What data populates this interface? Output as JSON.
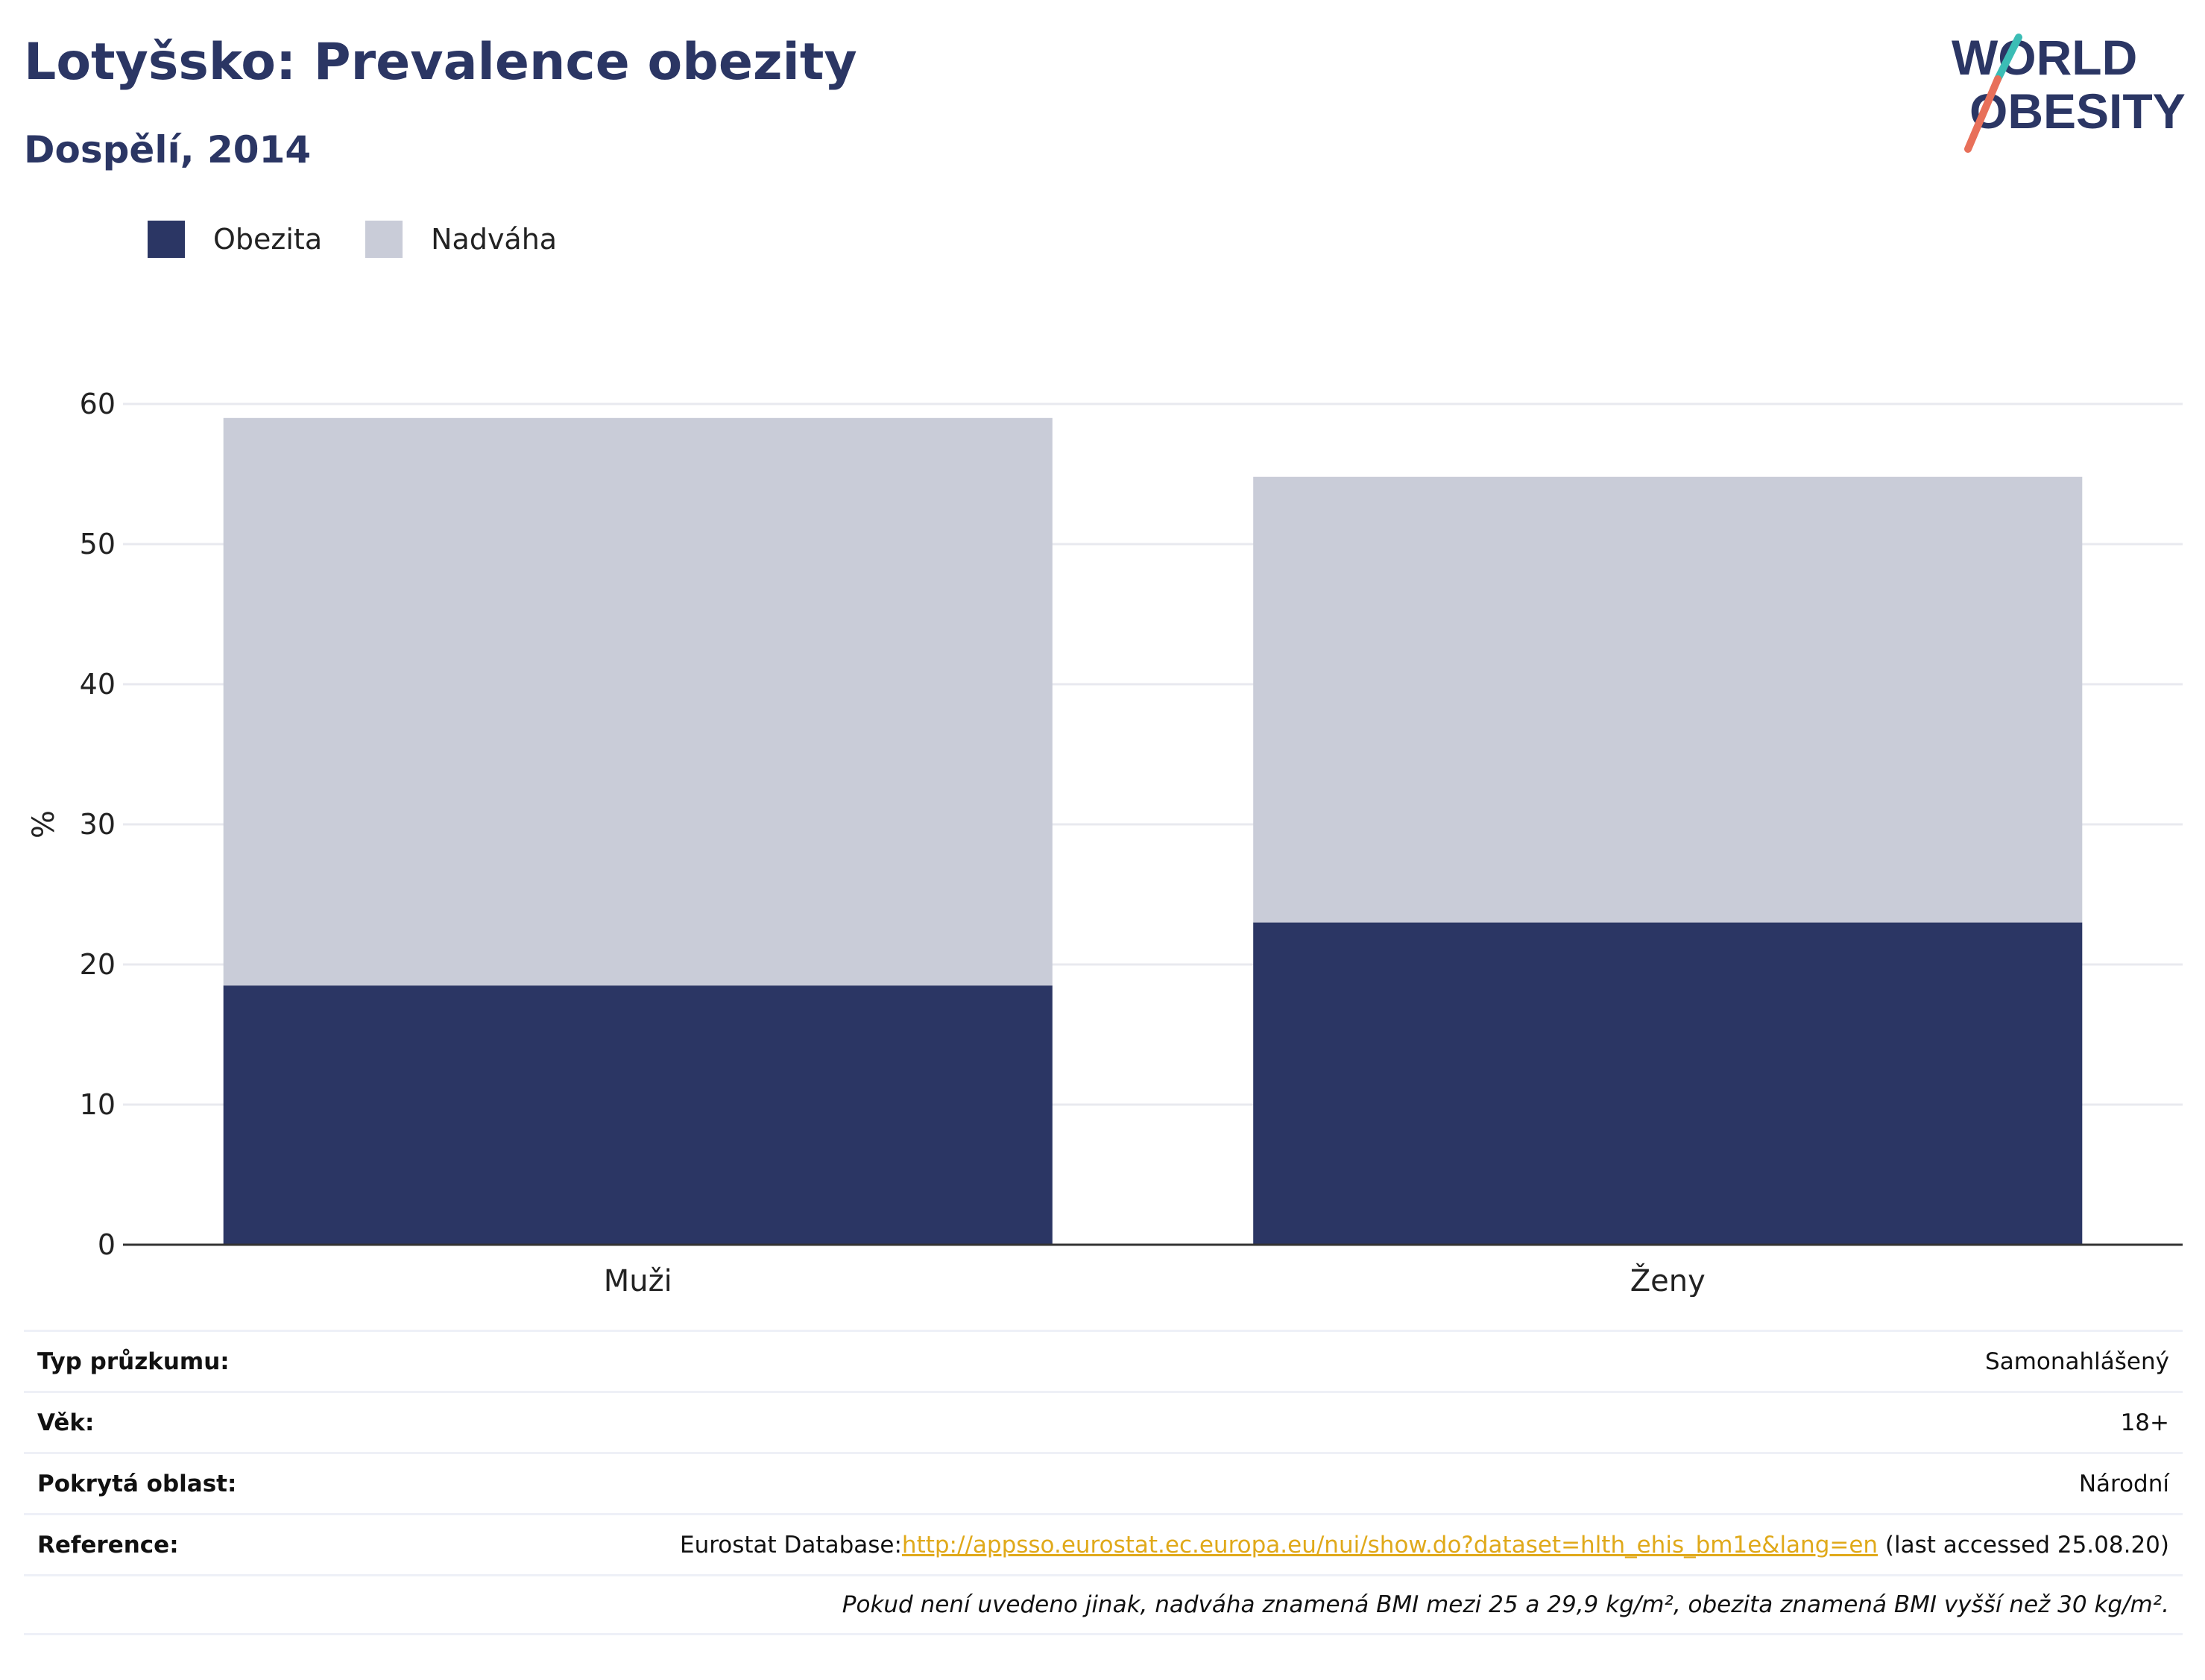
{
  "header": {
    "title": "Lotyšsko: Prevalence obezity",
    "subtitle": "Dospělí, 2014"
  },
  "logo": {
    "line1": "WORLD",
    "line2": "OBESITY"
  },
  "chart_data": {
    "type": "bar",
    "stacked": true,
    "categories": [
      "Muži",
      "Ženy"
    ],
    "series": [
      {
        "name": "Obezita",
        "values": [
          18.5,
          23.0
        ],
        "color": "#2b3664"
      },
      {
        "name": "Nadváha",
        "values": [
          40.5,
          31.8
        ],
        "color": "#c9ccd8"
      }
    ],
    "ylabel": "%",
    "ylim": [
      0,
      60
    ],
    "yticks": [
      0,
      10,
      20,
      30,
      40,
      50,
      60
    ],
    "grid": true,
    "legend_position": "top-left"
  },
  "info": {
    "survey_label": "Typ průzkumu:",
    "survey_value": "Samonahlášený",
    "age_label": "Věk:",
    "age_value": "18+",
    "area_label": "Pokrytá oblast:",
    "area_value": "Národní",
    "reference_label": "Reference:",
    "reference_prefix": "Eurostat Database:",
    "reference_link": "http://appsso.eurostat.ec.europa.eu/nui/show.do?dataset=hlth_ehis_bm1e&lang=en",
    "reference_suffix": " (last accessed 25.08.20)",
    "note": "Pokud není uvedeno jinak, nadváha znamená BMI mezi 25 a 29,9 kg/m², obezita znamená BMI vyšší než 30 kg/m²."
  }
}
